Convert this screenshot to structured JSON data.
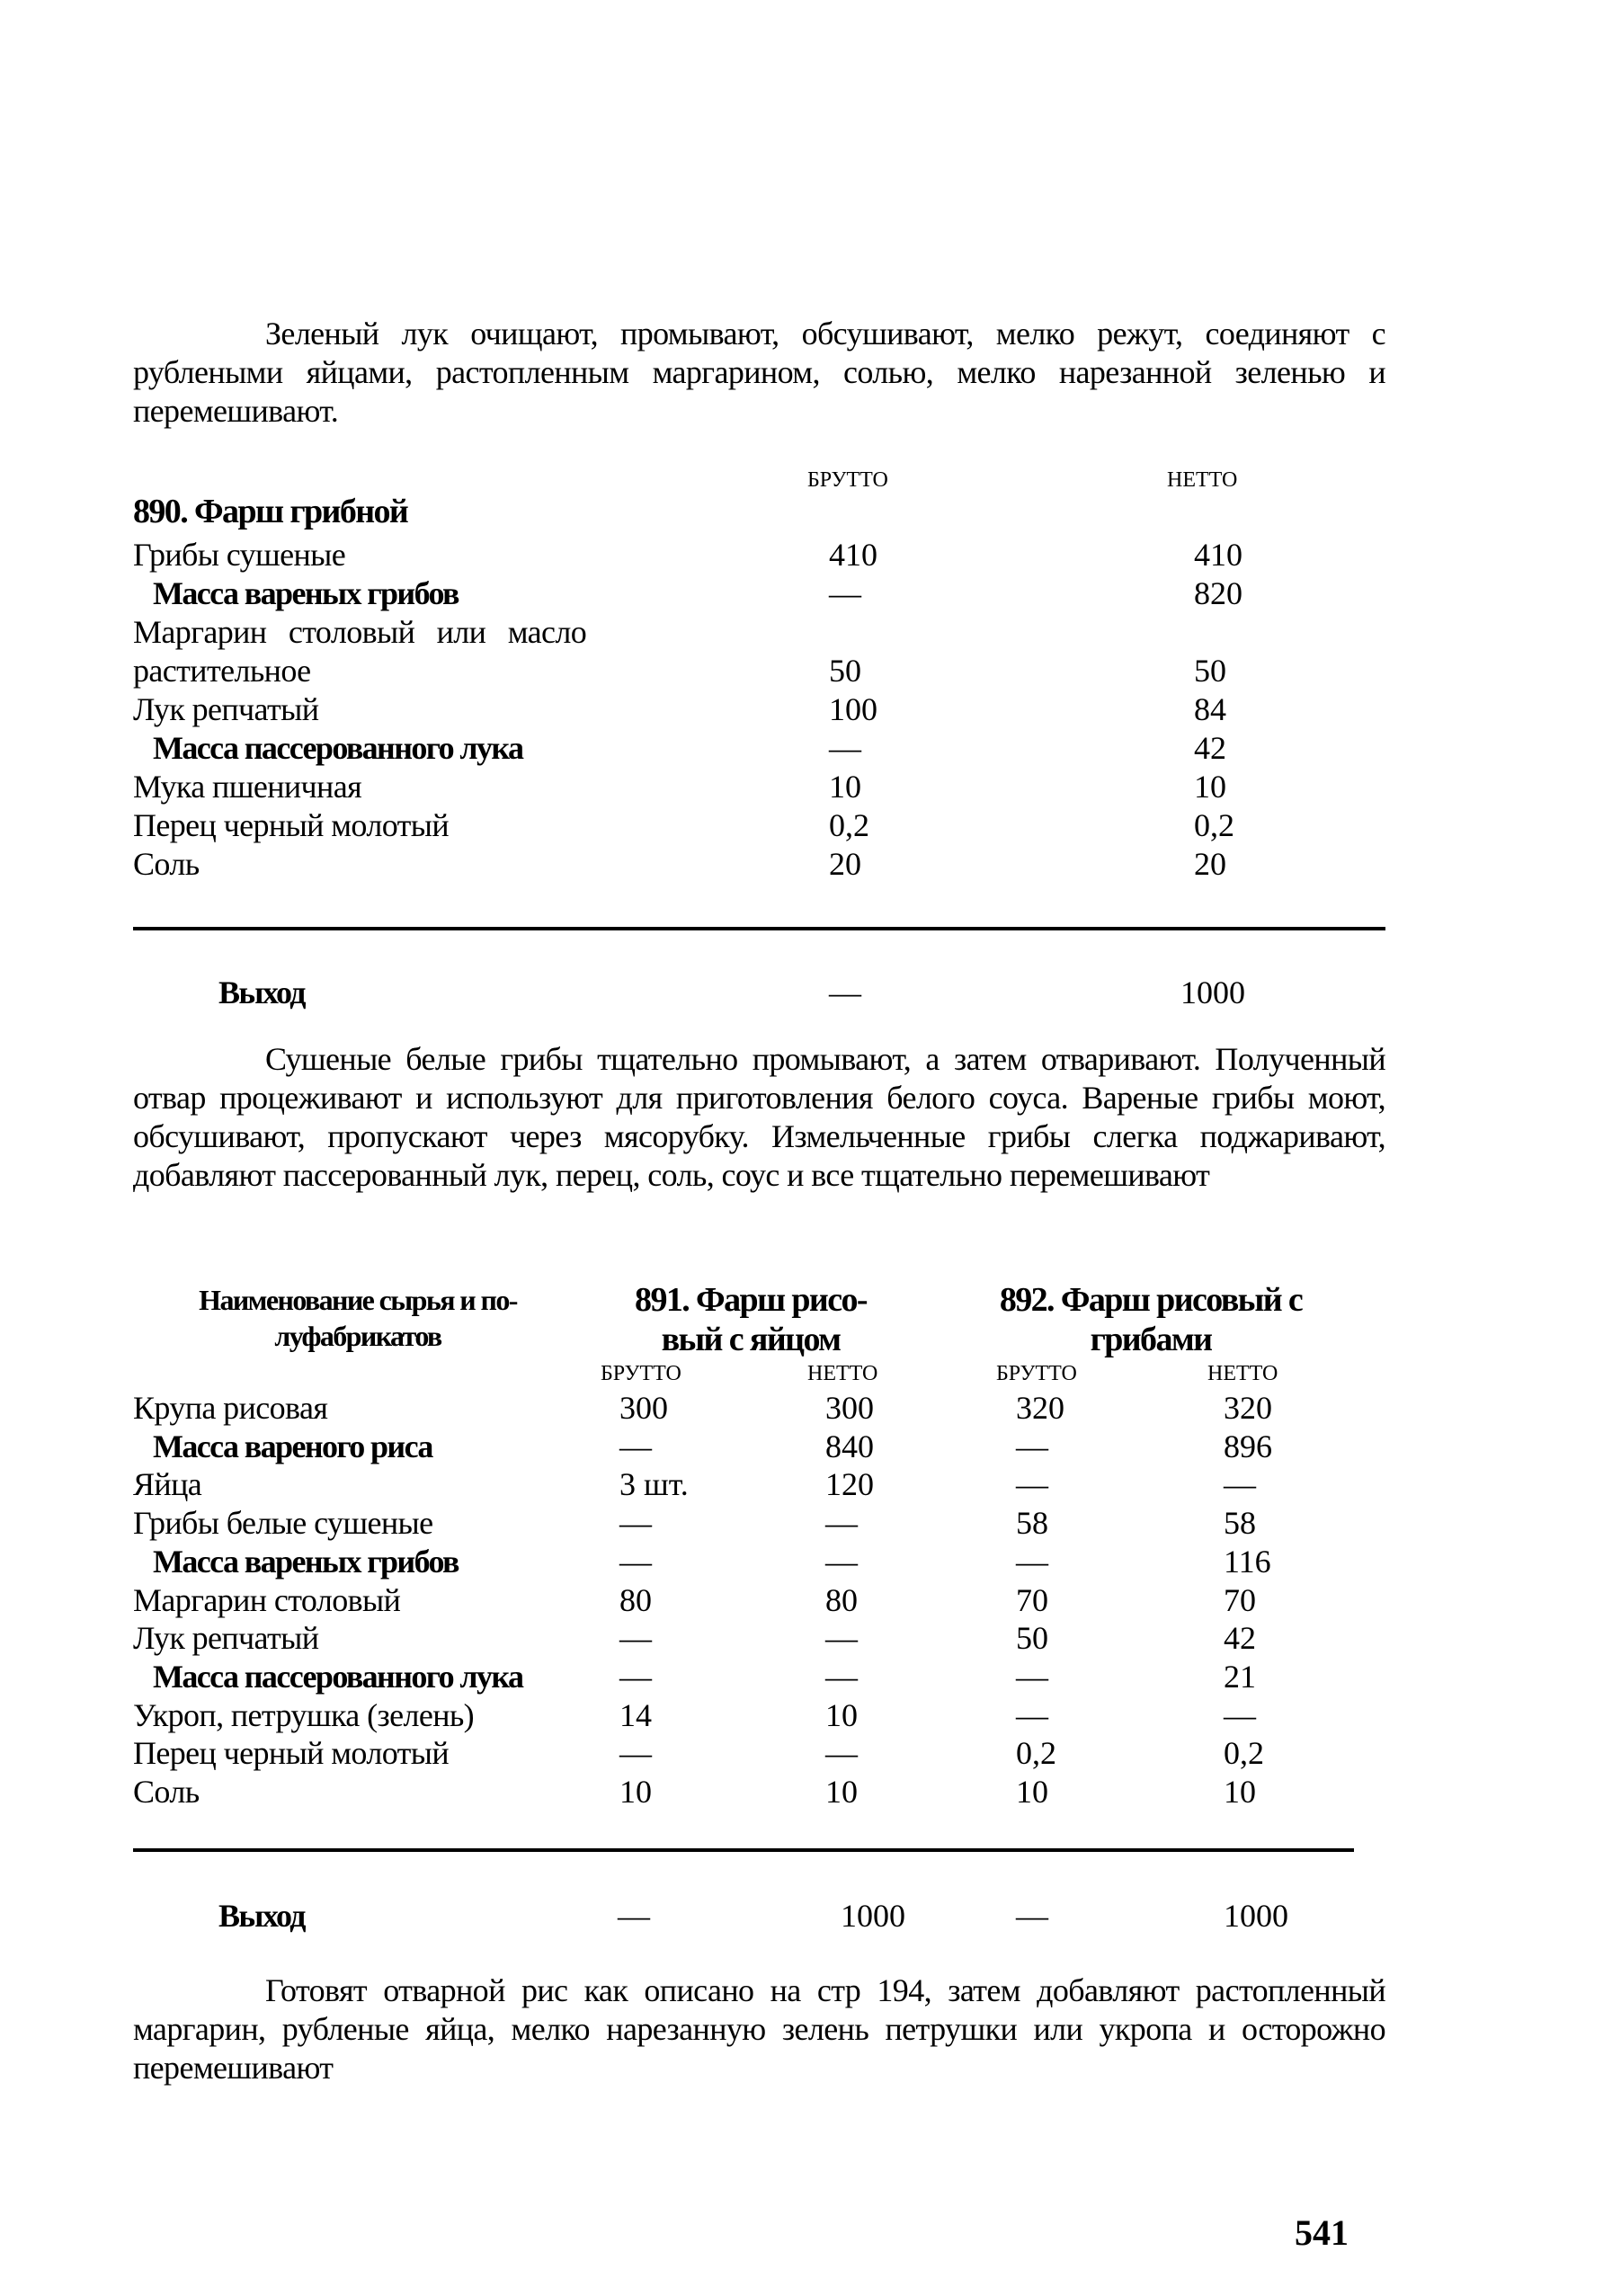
{
  "intro_paragraph": "Зеленый лук очищают, промывают, обсушивают, мелко режут, соединяют с рублеными яйцами, растопленным маргарином, солью, мелко нарезанной зеленью и перемешивают.",
  "recipe_890": {
    "col_brutto": "БРУТТО",
    "col_netto": "НЕТТО",
    "title": "890. Фарш грибной",
    "rows": [
      {
        "name": "Грибы сушеные",
        "bold": false,
        "brutto": "410",
        "netto": "410"
      },
      {
        "name": "Масса вареных грибов",
        "bold": true,
        "brutto": "—",
        "netto": "820"
      },
      {
        "name": "Маргарин столовый или масло",
        "bold": false,
        "brutto": "",
        "netto": ""
      },
      {
        "name": "растительное",
        "bold": false,
        "brutto": "50",
        "netto": "50"
      },
      {
        "name": "Лук репчатый",
        "bold": false,
        "brutto": "100",
        "netto": "84"
      },
      {
        "name": "Масса пассерованного лука",
        "bold": true,
        "brutto": "—",
        "netto": "42"
      },
      {
        "name": "Мука пшеничная",
        "bold": false,
        "brutto": "10",
        "netto": "10"
      },
      {
        "name": "Перец черный молотый",
        "bold": false,
        "brutto": "0,2",
        "netto": "0,2"
      },
      {
        "name": "Соль",
        "bold": false,
        "brutto": "20",
        "netto": "20"
      }
    ],
    "yield_label": "Выход",
    "yield_brutto": "—",
    "yield_netto": "1000",
    "description": "Сушеные белые грибы тщательно промывают, а затем отваривают. Полученный отвар процеживают и используют для приготовления белого соуса. Вареные грибы моют, обсушивают, пропускают через мясорубку. Измельченные грибы слегка поджаривают, добавляют пассерованный лук, перец, соль, соус и все тщательно перемешивают"
  },
  "recipe_891_892": {
    "name_header_line1": "Наименование сырья и по-",
    "name_header_line2": "луфабрикатов",
    "title_891_line1": "891. Фарш рисо-",
    "title_891_line2": "вый с яйцом",
    "title_892_line1": "892. Фарш рисовый с",
    "title_892_line2": "грибами",
    "col_brutto": "БРУТТО",
    "col_netto": "НЕТТО",
    "rows": [
      {
        "name": "Крупа рисовая",
        "bold": false,
        "v": [
          "300",
          "300",
          "320",
          "320"
        ]
      },
      {
        "name": "Масса вареного риса",
        "bold": true,
        "v": [
          "—",
          "840",
          "—",
          "896"
        ]
      },
      {
        "name": "Яйца",
        "bold": false,
        "v": [
          "3 шт.",
          "120",
          "—",
          "—"
        ]
      },
      {
        "name": "Грибы белые сушеные",
        "bold": false,
        "v": [
          "—",
          "—",
          "58",
          "58"
        ]
      },
      {
        "name": "Масса вареных грибов",
        "bold": true,
        "v": [
          "—",
          "—",
          "—",
          "116"
        ]
      },
      {
        "name": "Маргарин столовый",
        "bold": false,
        "v": [
          "80",
          "80",
          "70",
          "70"
        ]
      },
      {
        "name": "Лук репчатый",
        "bold": false,
        "v": [
          "—",
          "—",
          "50",
          "42"
        ]
      },
      {
        "name": "Масса пассерованного лука",
        "bold": true,
        "v": [
          "—",
          "—",
          "—",
          "21"
        ]
      },
      {
        "name": "Укроп, петрушка (зелень)",
        "bold": false,
        "v": [
          "14",
          "10",
          "—",
          "—"
        ]
      },
      {
        "name": "Перец черный молотый",
        "bold": false,
        "v": [
          "—",
          "—",
          "0,2",
          "0,2"
        ]
      },
      {
        "name": "Соль",
        "bold": false,
        "v": [
          "10",
          "10",
          "10",
          "10"
        ]
      }
    ],
    "yield_label": "Выход",
    "yield": [
      "—",
      "1000",
      "—",
      "1000"
    ],
    "description": "Готовят отварной рис как описано на стр 194, затем добавляют растопленный маргарин, рубленые яйца, мелко нарезанную зелень петрушки или укропа и осторожно перемешивают"
  },
  "page_number": "541"
}
